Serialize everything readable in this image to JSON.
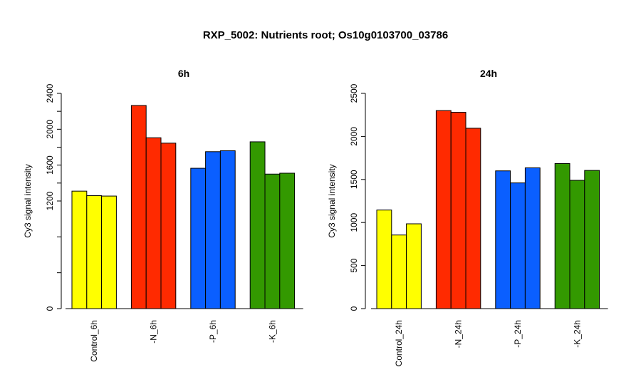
{
  "main_title": "RXP_5002: Nutrients root; Os10g0103700_03786",
  "chart_data": [
    {
      "type": "bar",
      "title": "6h",
      "ylabel": "Cy3 signal intensity",
      "ylim": [
        0,
        2400
      ],
      "yticks": [
        "0",
        "1200",
        "1600",
        "2000",
        "2400"
      ],
      "ytick_values": [
        0,
        1200,
        1600,
        2000,
        2400
      ],
      "minor_ticks": [
        400,
        800,
        1400,
        1800,
        2200
      ],
      "categories": [
        "Control_6h",
        "-N_6h",
        "-P_6h",
        "-K_6h"
      ],
      "groups": [
        {
          "category": "Control_6h",
          "color": "#FFFF00",
          "values": [
            1310,
            1260,
            1255
          ]
        },
        {
          "category": "-N_6h",
          "color": "#FF2A00",
          "values": [
            2265,
            1905,
            1845
          ]
        },
        {
          "category": "-P_6h",
          "color": "#0A5FFF",
          "values": [
            1565,
            1750,
            1760
          ]
        },
        {
          "category": "-K_6h",
          "color": "#339900",
          "values": [
            1860,
            1500,
            1510
          ]
        }
      ]
    },
    {
      "type": "bar",
      "title": "24h",
      "ylabel": "Cy3 signal intensity",
      "ylim": [
        0,
        2500
      ],
      "yticks": [
        "0",
        "500",
        "1000",
        "1500",
        "2000",
        "2500"
      ],
      "ytick_values": [
        0,
        500,
        1000,
        1500,
        2000,
        2500
      ],
      "minor_ticks": [],
      "categories": [
        "Control_24h",
        "-N_24h",
        "-P_24h",
        "-K_24h"
      ],
      "groups": [
        {
          "category": "Control_24h",
          "color": "#FFFF00",
          "values": [
            1145,
            855,
            985
          ]
        },
        {
          "category": "-N_24h",
          "color": "#FF2A00",
          "values": [
            2300,
            2280,
            2095
          ]
        },
        {
          "category": "-P_24h",
          "color": "#0A5FFF",
          "values": [
            1600,
            1460,
            1635
          ]
        },
        {
          "category": "-K_24h",
          "color": "#339900",
          "values": [
            1685,
            1490,
            1605
          ]
        }
      ]
    }
  ]
}
